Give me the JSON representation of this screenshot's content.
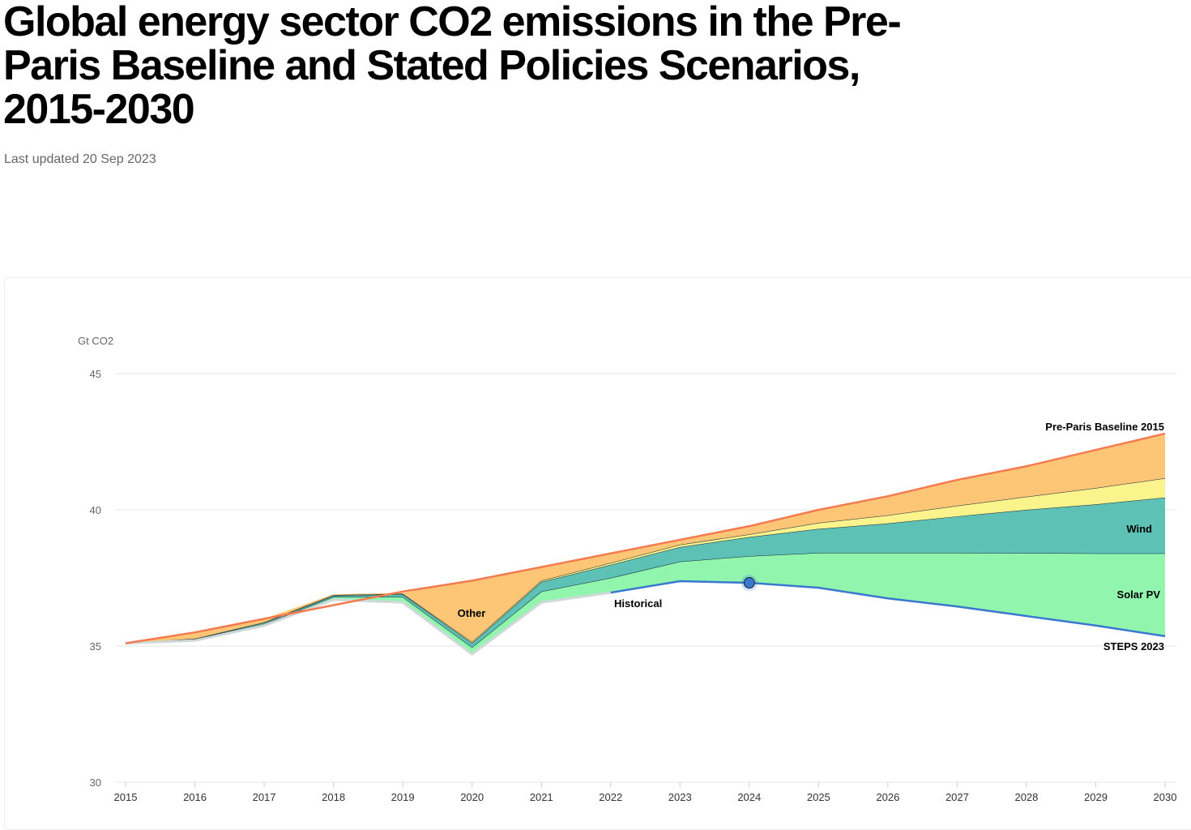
{
  "header": {
    "title": "Global energy sector CO2 emissions in the Pre-Paris Baseline and Stated Policies Scenarios, 2015-2030",
    "updated": "Last updated 20 Sep 2023"
  },
  "chart_data": {
    "type": "area",
    "stacked": true,
    "ylabel": "Gt CO2",
    "ylim": [
      30,
      45
    ],
    "yticks": [
      "30",
      "35",
      "40",
      "45"
    ],
    "x": [
      "2015",
      "2016",
      "2017",
      "2018",
      "2019",
      "2020",
      "2021",
      "2022",
      "2023",
      "2024",
      "2025",
      "2026",
      "2027",
      "2028",
      "2029",
      "2030"
    ],
    "grid": true,
    "lines": {
      "baseline": {
        "name": "Pre-Paris Baseline 2015",
        "color": "#F47A4F",
        "values": [
          35.1,
          35.5,
          36.0,
          36.5,
          37.0,
          37.4,
          37.9,
          38.4,
          38.9,
          39.4,
          40.0,
          40.5,
          41.1,
          41.6,
          42.2,
          42.8
        ]
      },
      "historical": {
        "name": "Historical",
        "color": "#D0D8D8",
        "values": [
          35.1,
          35.2,
          35.75,
          36.7,
          36.6,
          34.7,
          36.6,
          36.96,
          null,
          null,
          null,
          null,
          null,
          null,
          null,
          null
        ]
      },
      "steps": {
        "name": "STEPS 2023",
        "color": "#3A78D0",
        "values": [
          null,
          null,
          null,
          null,
          null,
          null,
          null,
          36.96,
          37.38,
          37.32,
          37.14,
          36.75,
          36.45,
          36.1,
          35.75,
          35.36
        ]
      }
    },
    "series_cumulative_top": [
      {
        "name": "Solar PV",
        "color": "#92F5AE",
        "values": [
          35.1,
          35.22,
          35.8,
          36.8,
          36.8,
          34.95,
          37.0,
          37.5,
          38.1,
          38.3,
          38.42,
          38.42,
          38.42,
          38.41,
          38.4,
          38.4
        ]
      },
      {
        "name": "Wind",
        "color": "#5EC1B5",
        "values": [
          35.1,
          35.25,
          35.85,
          36.85,
          36.9,
          35.1,
          37.35,
          37.98,
          38.63,
          39.0,
          39.3,
          39.5,
          39.76,
          40.0,
          40.2,
          40.45
        ]
      },
      {
        "name": "",
        "color": "#FBF38C",
        "values": [
          35.1,
          35.27,
          35.87,
          36.87,
          36.92,
          35.15,
          37.4,
          38.05,
          38.72,
          39.1,
          39.52,
          39.8,
          40.15,
          40.48,
          40.8,
          41.16
        ]
      },
      {
        "name": "Other",
        "color": "#FDC677",
        "values": [
          35.1,
          35.5,
          36.0,
          36.9,
          36.95,
          37.4,
          37.9,
          38.4,
          38.9,
          39.4,
          40.0,
          40.5,
          41.1,
          41.6,
          42.2,
          42.8
        ]
      }
    ],
    "highlight": {
      "x": "2024",
      "y": 37.32
    }
  }
}
